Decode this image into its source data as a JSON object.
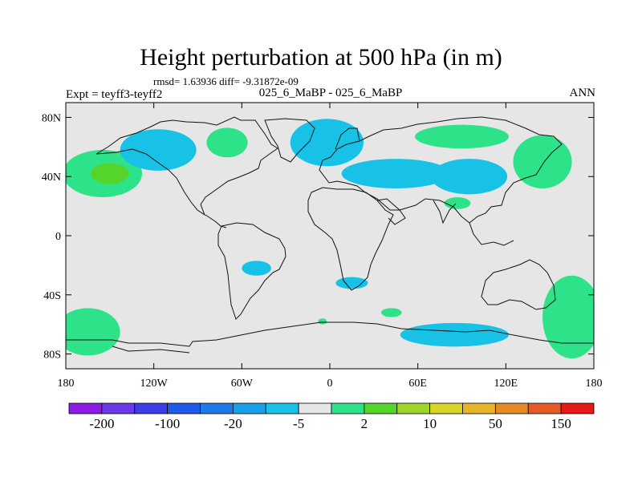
{
  "header": {
    "title": "Height perturbation at 500 hPa (in m)",
    "stats": "rmsd= 1.63936 diff= -9.31872e-09",
    "experiment": "Expt = teyff3-teyff2",
    "case_name": "025_6_MaBP - 025_6_MaBP",
    "season": "ANN"
  },
  "chart_data": {
    "type": "contour-map",
    "title": "Height perturbation at 500 hPa (in m)",
    "xlabel": "",
    "ylabel": "",
    "xlim": [
      -180,
      180
    ],
    "ylim": [
      -90,
      90
    ],
    "x_ticks": [
      {
        "value": -180,
        "label": "180"
      },
      {
        "value": -120,
        "label": "120W"
      },
      {
        "value": -60,
        "label": "60W"
      },
      {
        "value": 0,
        "label": "0"
      },
      {
        "value": 60,
        "label": "60E"
      },
      {
        "value": 120,
        "label": "120E"
      },
      {
        "value": 180,
        "label": "180"
      }
    ],
    "y_ticks": [
      {
        "value": 80,
        "label": "80N"
      },
      {
        "value": 40,
        "label": "40N"
      },
      {
        "value": 0,
        "label": "0"
      },
      {
        "value": -40,
        "label": "40S"
      },
      {
        "value": -80,
        "label": "80S"
      }
    ],
    "background_color": "#e6e6e6",
    "regions": [
      {
        "name": "north-pacific-high",
        "sign": "positive",
        "color": "#2ee28a",
        "lon": -155,
        "lat": 42,
        "lon_radius": 27,
        "lat_radius": 16
      },
      {
        "name": "north-pacific-core",
        "sign": "positive",
        "color": "#55d42a",
        "lon": -150,
        "lat": 42,
        "lon_radius": 13,
        "lat_radius": 7
      },
      {
        "name": "alaska-low",
        "sign": "negative",
        "color": "#18c2e6",
        "lon": -117,
        "lat": 58,
        "lon_radius": 26,
        "lat_radius": 14
      },
      {
        "name": "hudson-high",
        "sign": "positive",
        "color": "#2ee28a",
        "lon": -70,
        "lat": 63,
        "lon_radius": 14,
        "lat_radius": 10
      },
      {
        "name": "north-atlantic-low",
        "sign": "negative",
        "color": "#18c2e6",
        "lon": -2,
        "lat": 63,
        "lon_radius": 25,
        "lat_radius": 16
      },
      {
        "name": "europe-low",
        "sign": "negative",
        "color": "#18c2e6",
        "lon": 45,
        "lat": 42,
        "lon_radius": 37,
        "lat_radius": 10
      },
      {
        "name": "asia-low",
        "sign": "negative",
        "color": "#18c2e6",
        "lon": 95,
        "lat": 40,
        "lon_radius": 26,
        "lat_radius": 12
      },
      {
        "name": "siberia-high",
        "sign": "positive",
        "color": "#2ee28a",
        "lon": 90,
        "lat": 67,
        "lon_radius": 32,
        "lat_radius": 8
      },
      {
        "name": "east-asia-high",
        "sign": "positive",
        "color": "#2ee28a",
        "lon": 145,
        "lat": 50,
        "lon_radius": 20,
        "lat_radius": 18
      },
      {
        "name": "tibet-high",
        "sign": "positive",
        "color": "#2ee28a",
        "lon": 87,
        "lat": 22,
        "lon_radius": 9,
        "lat_radius": 4
      },
      {
        "name": "south-america-low",
        "sign": "negative",
        "color": "#18c2e6",
        "lon": -50,
        "lat": -22,
        "lon_radius": 10,
        "lat_radius": 5
      },
      {
        "name": "south-africa-low",
        "sign": "negative",
        "color": "#18c2e6",
        "lon": 15,
        "lat": -32,
        "lon_radius": 11,
        "lat_radius": 4
      },
      {
        "name": "southern-ocean-low",
        "sign": "negative",
        "color": "#18c2e6",
        "lon": 85,
        "lat": -67,
        "lon_radius": 37,
        "lat_radius": 8
      },
      {
        "name": "south-pacific-high-west",
        "sign": "positive",
        "color": "#2ee28a",
        "lon": -165,
        "lat": -65,
        "lon_radius": 22,
        "lat_radius": 16
      },
      {
        "name": "south-pacific-high-east",
        "sign": "positive",
        "color": "#2ee28a",
        "lon": 165,
        "lat": -55,
        "lon_radius": 20,
        "lat_radius": 28
      },
      {
        "name": "indian-ocean-patch",
        "sign": "positive",
        "color": "#2ee28a",
        "lon": 42,
        "lat": -52,
        "lon_radius": 7,
        "lat_radius": 3
      },
      {
        "name": "atlantic-patch",
        "sign": "positive",
        "color": "#2ee28a",
        "lon": -5,
        "lat": -58,
        "lon_radius": 3,
        "lat_radius": 2
      }
    ],
    "colorbar": {
      "colors": [
        "#8c1ce6",
        "#6a3ae8",
        "#3c3ce8",
        "#1f5ae8",
        "#1e7ae8",
        "#1aa0e6",
        "#18c2e6",
        "#e6e6e6",
        "#2ee28a",
        "#55d42a",
        "#a0d428",
        "#d8d428",
        "#e6b428",
        "#e68a28",
        "#e65a28",
        "#e61818"
      ],
      "labels": [
        "-200",
        "-100",
        "-20",
        "-5",
        "2",
        "10",
        "50",
        "150"
      ]
    }
  }
}
